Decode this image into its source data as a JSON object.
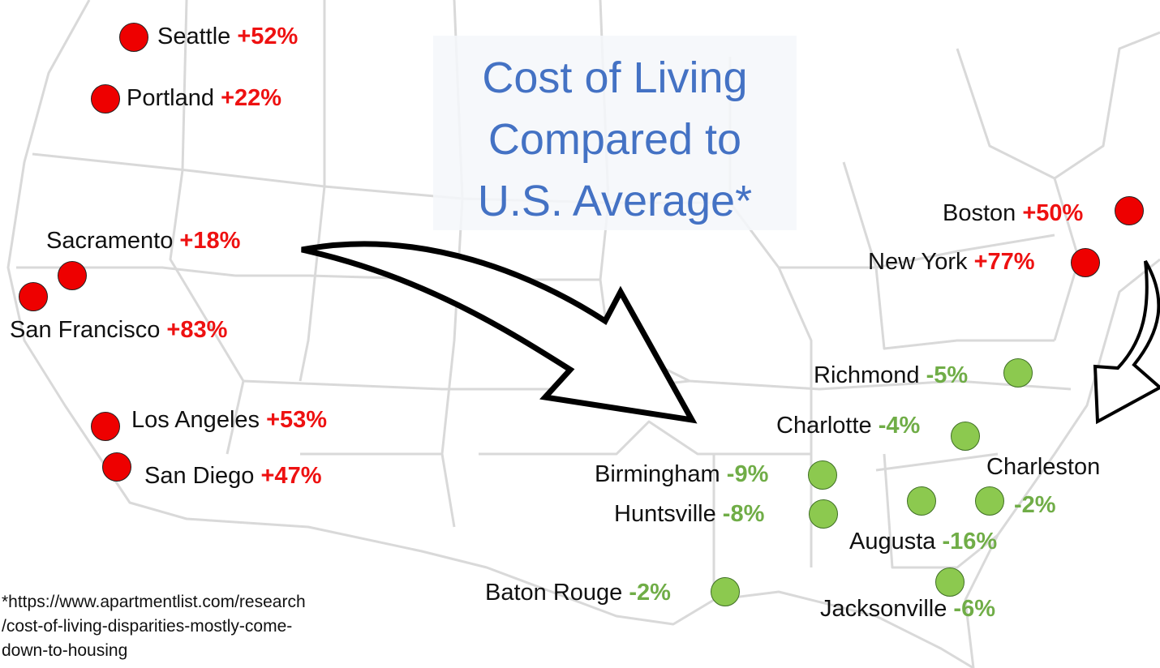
{
  "title": "Cost of Living\nCompared to\nU.S. Average*",
  "footnote": "*https://www.apartmentlist.com/research\n/cost-of-living-disparities-mostly-come-\ndown-to-housing",
  "colors": {
    "above_average": "#ee0000",
    "below_average": "#70ad47",
    "title": "#4472c4"
  },
  "cities": [
    {
      "name": "Seattle",
      "value": "+52%"
    },
    {
      "name": "Portland",
      "value": "+22%"
    },
    {
      "name": "Sacramento",
      "value": "+18%"
    },
    {
      "name": "San Francisco",
      "value": "+83%"
    },
    {
      "name": "Los Angeles",
      "value": "+53%"
    },
    {
      "name": "San Diego",
      "value": "+47%"
    },
    {
      "name": "Boston",
      "value": "+50%"
    },
    {
      "name": "New York",
      "value": "+77%"
    },
    {
      "name": "Richmond",
      "value": "-5%"
    },
    {
      "name": "Charlotte",
      "value": "-4%"
    },
    {
      "name": "Birmingham",
      "value": "-9%"
    },
    {
      "name": "Huntsville",
      "value": "-8%"
    },
    {
      "name": "Charleston",
      "value": "-2%"
    },
    {
      "name": "Augusta",
      "value": "-16%"
    },
    {
      "name": "Baton Rouge",
      "value": "-2%"
    },
    {
      "name": "Jacksonville",
      "value": "-6%"
    }
  ]
}
